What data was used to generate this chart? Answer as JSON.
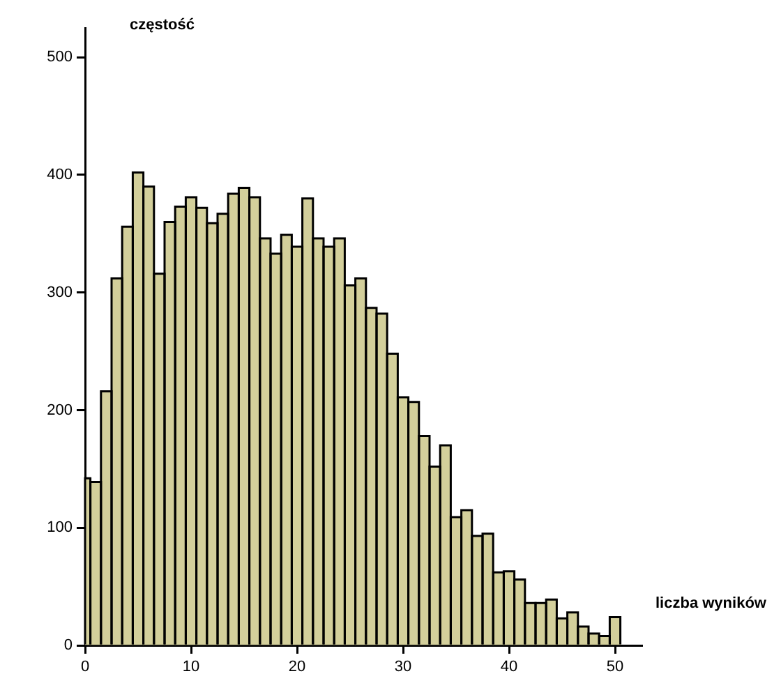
{
  "chart_data": {
    "type": "histogram",
    "xlabel": "liczba wyników",
    "ylabel": "częstość",
    "bins": [
      0,
      0.5,
      1.5,
      2.5,
      3.5,
      4.5,
      5.5,
      6.5,
      7.5,
      8.5,
      9.5,
      10.5,
      11.5,
      12.5,
      13.5,
      14.5,
      15.5,
      16.5,
      17.5,
      18.5,
      19.5,
      20.5,
      21.5,
      22.5,
      23.5,
      24.5,
      25.5,
      26.5,
      27.5,
      28.5,
      29.5,
      30.5,
      31.5,
      32.5,
      33.5,
      34.5,
      35.5,
      36.5,
      37.5,
      38.5,
      39.5,
      40.5,
      41.5,
      42.5,
      43.5,
      44.5,
      45.5,
      46.5,
      47.5,
      48.5,
      49.5,
      50.5
    ],
    "values": [
      142,
      139,
      216,
      312,
      356,
      402,
      390,
      316,
      360,
      373,
      381,
      372,
      359,
      367,
      384,
      389,
      381,
      346,
      333,
      349,
      339,
      380,
      346,
      339,
      346,
      306,
      312,
      287,
      282,
      248,
      211,
      207,
      178,
      152,
      170,
      109,
      115,
      93,
      95,
      62,
      63,
      56,
      36,
      36,
      39,
      23,
      28,
      16,
      10,
      8,
      24
    ],
    "color": "#d3cf9b",
    "xlim": [
      0,
      52.5
    ],
    "xticks": [
      0,
      10,
      20,
      30,
      40,
      50
    ],
    "ylim": [
      0,
      525
    ],
    "yticks": [
      0,
      100,
      200,
      300,
      400,
      500
    ],
    "grid": false,
    "legend": false
  }
}
